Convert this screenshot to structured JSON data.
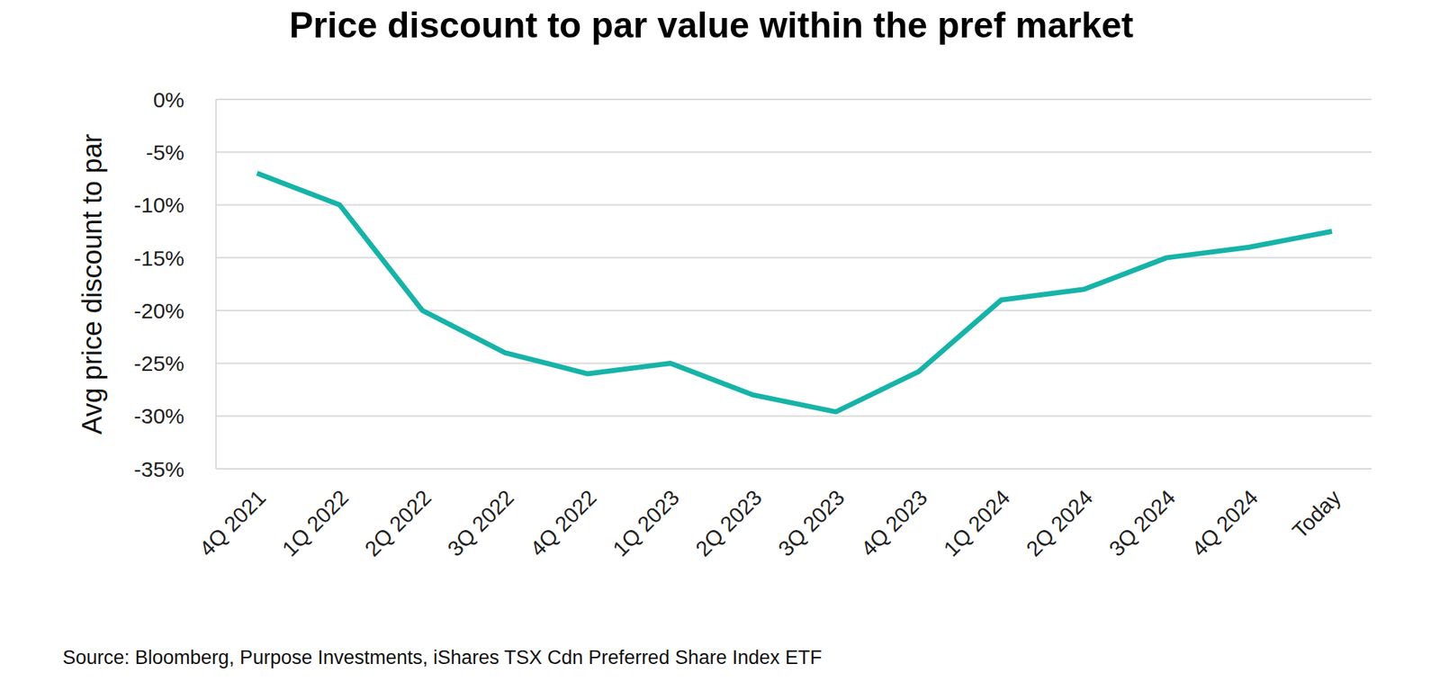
{
  "chart_data": {
    "type": "line",
    "title": "Price discount to par value within the pref market",
    "y_label": "Avg price discount to par",
    "source": "Source: Bloomberg, Purpose Investments, iShares TSX Cdn Preferred Share Index ETF",
    "categories": [
      "4Q 2021",
      "1Q 2022",
      "2Q 2022",
      "3Q 2022",
      "4Q 2022",
      "1Q 2023",
      "2Q 2023",
      "3Q 2023",
      "4Q 2023",
      "1Q 2024",
      "2Q 2024",
      "3Q 2024",
      "4Q 2024",
      "Today"
    ],
    "values": [
      -7,
      -10,
      -20,
      -24,
      -26,
      -25,
      -28,
      -29.6,
      -25.8,
      -19,
      -18,
      -15,
      -14,
      -12.5
    ],
    "color": "#17b3a8",
    "ylim": [
      -35,
      0
    ],
    "yticks": [
      {
        "value": 0,
        "label": "0%"
      },
      {
        "value": -5,
        "label": "-5%"
      },
      {
        "value": -10,
        "label": "-10%"
      },
      {
        "value": -15,
        "label": "-15%"
      },
      {
        "value": -20,
        "label": "-20%"
      },
      {
        "value": -25,
        "label": "-25%"
      },
      {
        "value": -30,
        "label": "-30%"
      },
      {
        "value": -35,
        "label": "-35%"
      }
    ],
    "grid": true
  }
}
